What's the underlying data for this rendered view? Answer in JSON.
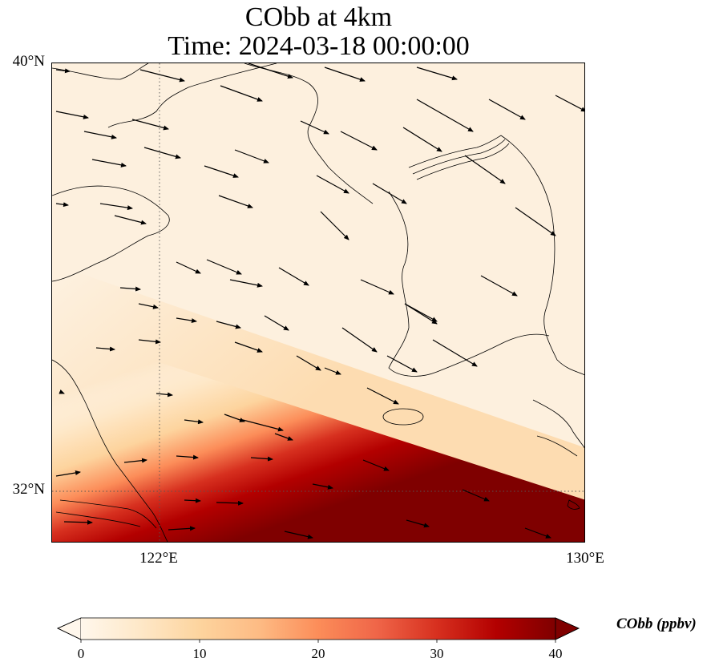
{
  "title": {
    "line1": "CObb at 4km",
    "line2": "Time: 2024-03-18 00:00:00"
  },
  "map": {
    "lat_labels": [
      "40°N",
      "32°N"
    ],
    "lon_labels": [
      "122°E",
      "130°E"
    ],
    "extent": {
      "lon_min": 120,
      "lon_max": 130,
      "lat_min": 31,
      "lat_max": 40
    },
    "gridlines": {
      "lon": [
        122
      ],
      "lat": [
        32
      ],
      "style": "dotted"
    },
    "field": "CObb",
    "wind_vectors": "shown"
  },
  "colorbar": {
    "label": "CObb (ppbv)",
    "ticks": [
      "0",
      "10",
      "20",
      "30",
      "40"
    ],
    "range": [
      0,
      40
    ],
    "extend": "both",
    "colormap": "OrRd",
    "colors": [
      "#fff7ec",
      "#fee8c8",
      "#fdd49e",
      "#fdbb84",
      "#fc8d59",
      "#ef6548",
      "#d7301f",
      "#b30000",
      "#7f0000"
    ]
  },
  "chart_data": {
    "type": "heatmap",
    "title": "CObb at 4km\nTime: 2024-03-18 00:00:00",
    "colorbar_label": "CObb (ppbv)",
    "vmin": 0,
    "vmax": 40,
    "x_ticks": [
      "122°E",
      "130°E"
    ],
    "y_ticks": [
      "40°N",
      "32°N"
    ]
  }
}
